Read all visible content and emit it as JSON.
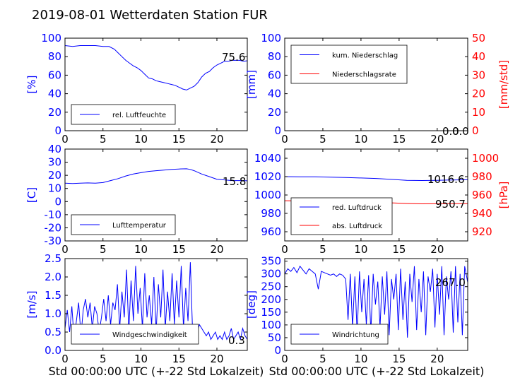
{
  "title": "2019-08-01 Wetterdaten Station FUR",
  "xlabel": "Std 00:00:00 UTC (+-22 Std Lokalzeit)",
  "colors": {
    "blue": "#0000ff",
    "red": "#ff0000",
    "black": "#000000"
  },
  "chart_data": [
    {
      "type": "line",
      "id": "humidity",
      "ylabel": "[%]",
      "xlim": [
        0,
        24
      ],
      "ylim": [
        0,
        100
      ],
      "xticks": [
        0,
        5,
        10,
        15,
        20
      ],
      "yticks": [
        0,
        20,
        40,
        60,
        80,
        100
      ],
      "legend_loc": "lower-left",
      "annotation": "75.6",
      "series": [
        {
          "name": "rel. Luftfeuchte",
          "color": "#0000ff",
          "x": [
            0,
            1,
            2,
            3,
            4,
            5,
            5.8,
            6.5,
            7,
            7.5,
            8,
            8.5,
            9,
            9.5,
            10,
            10.5,
            11,
            11.5,
            12,
            12.5,
            13,
            13.5,
            14,
            14.5,
            15,
            15.5,
            16,
            16.5,
            17,
            17.5,
            18,
            18.5,
            19,
            19.5,
            20,
            20.5,
            21,
            21.5,
            22,
            22.5,
            23,
            23.5,
            24
          ],
          "y": [
            92,
            91,
            92,
            92,
            92,
            91,
            91,
            88,
            84,
            80,
            76,
            73,
            70,
            68,
            65,
            61,
            57,
            56,
            54,
            53,
            52,
            51,
            50,
            49,
            47,
            45,
            44,
            46,
            48,
            52,
            58,
            62,
            64,
            68,
            71,
            73,
            75,
            75,
            76,
            76,
            76,
            75,
            75.6
          ]
        }
      ]
    },
    {
      "type": "line",
      "id": "precipitation",
      "ylabel": "[mm]",
      "ylabel_right": "[mm/std]",
      "xlim": [
        0,
        24
      ],
      "ylim": [
        0,
        100
      ],
      "ylim_right": [
        0,
        50
      ],
      "xticks": [
        0,
        5,
        10,
        15,
        20
      ],
      "yticks": [
        0,
        20,
        40,
        60,
        80,
        100
      ],
      "yticks_right": [
        0,
        10,
        20,
        30,
        40,
        50
      ],
      "legend_loc": "upper-left",
      "annotation": "0.0",
      "annotation_right": "0.0",
      "series": [
        {
          "name": "kum. Niederschlag",
          "color": "#0000ff",
          "x": [
            0,
            24
          ],
          "y": [
            0,
            0
          ]
        },
        {
          "name": "Niederschlagsrate",
          "color": "#ff0000",
          "axis": "right",
          "x": [
            0,
            24
          ],
          "y": [
            0,
            0
          ]
        }
      ]
    },
    {
      "type": "line",
      "id": "temperature",
      "ylabel": "[C]",
      "xlim": [
        0,
        24
      ],
      "ylim": [
        -30,
        40
      ],
      "xticks": [
        0,
        5,
        10,
        15,
        20
      ],
      "yticks": [
        -30,
        -20,
        -10,
        0,
        10,
        20,
        30,
        40
      ],
      "legend_loc": "lower-left",
      "annotation": "15.8",
      "series": [
        {
          "name": "Lufttemperatur",
          "color": "#0000ff",
          "x": [
            0,
            1,
            2,
            3,
            4,
            5,
            6,
            7,
            8,
            9,
            10,
            11,
            12,
            13,
            14,
            15,
            16,
            16.5,
            17,
            18,
            19,
            20,
            21,
            22,
            23,
            24
          ],
          "y": [
            14,
            13.8,
            14,
            14.2,
            14,
            14.5,
            16,
            17.5,
            19.5,
            21,
            22,
            23,
            23.5,
            24,
            24.5,
            24.8,
            25,
            24.5,
            23.5,
            21,
            19,
            17,
            16.5,
            16,
            16,
            15.8
          ]
        }
      ]
    },
    {
      "type": "line",
      "id": "pressure",
      "ylabel_right": "[hPa]",
      "xlim": [
        0,
        24
      ],
      "ylim": [
        950,
        1050
      ],
      "ylim_right": [
        910,
        1010
      ],
      "xticks": [
        0,
        5,
        10,
        15,
        20
      ],
      "yticks": [
        960,
        980,
        1000,
        1020,
        1040
      ],
      "yticks_right": [
        920,
        940,
        960,
        980,
        1000
      ],
      "legend_loc": "lower-left",
      "annotation": "1016.6",
      "annotation_right": "950.7",
      "series": [
        {
          "name": "red. Luftdruck",
          "color": "#0000ff",
          "x": [
            0,
            2,
            4,
            6,
            8,
            10,
            12,
            14,
            16,
            18,
            20,
            22,
            24
          ],
          "y": [
            1020,
            1019.8,
            1019.8,
            1019.5,
            1019,
            1018.5,
            1018,
            1017,
            1016,
            1015.8,
            1016,
            1016.4,
            1016.6
          ]
        },
        {
          "name": "abs. Luftdruck",
          "color": "#ff0000",
          "axis": "right",
          "x": [
            0,
            2,
            4,
            6,
            8,
            10,
            12,
            14,
            16,
            18,
            20,
            22,
            24
          ],
          "y": [
            953.8,
            953.7,
            953.6,
            953.4,
            953,
            952.6,
            952.2,
            951.5,
            950.8,
            950.4,
            950.5,
            950.6,
            950.7
          ]
        }
      ]
    },
    {
      "type": "line",
      "id": "windspeed",
      "ylabel": "[m/s]",
      "xlim": [
        0,
        24
      ],
      "ylim": [
        0,
        2.5
      ],
      "xticks": [
        0,
        5,
        10,
        15,
        20
      ],
      "yticks": [
        0.0,
        0.5,
        1.0,
        1.5,
        2.0,
        2.5
      ],
      "legend_loc": "lower-left",
      "annotation": "0.3",
      "series": [
        {
          "name": "Windgeschwindigkeit",
          "color": "#0000ff",
          "x": [
            0,
            0.3,
            0.6,
            0.9,
            1.2,
            1.5,
            1.8,
            2.1,
            2.4,
            2.7,
            3.0,
            3.3,
            3.6,
            3.9,
            4.2,
            4.5,
            4.8,
            5.1,
            5.4,
            5.7,
            6.0,
            6.3,
            6.6,
            6.9,
            7.2,
            7.5,
            7.8,
            8.1,
            8.4,
            8.7,
            9.0,
            9.3,
            9.6,
            9.9,
            10.2,
            10.5,
            10.8,
            11.1,
            11.4,
            11.7,
            12.0,
            12.3,
            12.6,
            12.9,
            13.2,
            13.5,
            13.8,
            14.1,
            14.4,
            14.7,
            15.0,
            15.3,
            15.6,
            15.9,
            16.2,
            16.5,
            16.8,
            17.1,
            17.4,
            17.7,
            18.0,
            18.3,
            18.6,
            18.9,
            19.2,
            19.5,
            19.8,
            20.1,
            20.4,
            20.7,
            21.0,
            21.3,
            21.6,
            21.9,
            22.2,
            22.5,
            22.8,
            23.1,
            23.4,
            23.7,
            24.0
          ],
          "y": [
            0.6,
            1.1,
            0.5,
            1.2,
            0.3,
            0.8,
            1.3,
            0.4,
            1.1,
            1.4,
            0.9,
            1.3,
            0.6,
            1.2,
            1.0,
            0.5,
            0.9,
            1.4,
            0.8,
            1.5,
            0.7,
            1.3,
            1.1,
            1.8,
            0.6,
            1.6,
            0.9,
            2.2,
            0.5,
            1.9,
            0.8,
            2.3,
            1.0,
            1.7,
            0.6,
            2.1,
            0.9,
            1.5,
            0.7,
            2.0,
            0.5,
            1.8,
            0.9,
            2.2,
            0.6,
            1.6,
            0.8,
            2.1,
            0.7,
            1.9,
            0.9,
            2.3,
            0.6,
            1.7,
            0.8,
            2.4,
            0.5,
            0.6,
            0.5,
            0.7,
            0.6,
            0.5,
            0.4,
            0.5,
            0.3,
            0.4,
            0.5,
            0.3,
            0.4,
            0.3,
            0.5,
            0.3,
            0.4,
            0.6,
            0.3,
            0.4,
            0.5,
            0.3,
            0.6,
            0.4,
            0.3
          ]
        }
      ]
    },
    {
      "type": "line",
      "id": "winddirection",
      "ylabel": "[deg]",
      "xlim": [
        0,
        24
      ],
      "ylim": [
        0,
        360
      ],
      "xticks": [
        0,
        5,
        10,
        15,
        20
      ],
      "yticks": [
        0,
        50,
        100,
        150,
        200,
        250,
        300,
        350
      ],
      "legend_loc": "lower-left",
      "annotation": "267.0",
      "series": [
        {
          "name": "Windrichtung",
          "color": "#0000ff",
          "x": [
            0,
            0.4,
            0.8,
            1.2,
            1.6,
            2.0,
            2.4,
            2.8,
            3.2,
            3.6,
            4.0,
            4.4,
            4.8,
            5.2,
            5.6,
            6.0,
            6.4,
            6.8,
            7.2,
            7.6,
            8.0,
            8.3,
            8.6,
            8.9,
            9.2,
            9.5,
            9.8,
            10.1,
            10.4,
            10.7,
            11.0,
            11.3,
            11.6,
            11.9,
            12.2,
            12.5,
            12.8,
            13.1,
            13.4,
            13.7,
            14.0,
            14.3,
            14.6,
            14.9,
            15.2,
            15.5,
            15.8,
            16.1,
            16.4,
            16.7,
            17.0,
            17.3,
            17.6,
            17.9,
            18.2,
            18.5,
            18.8,
            19.1,
            19.4,
            19.7,
            20.0,
            20.3,
            20.6,
            20.9,
            21.2,
            21.5,
            21.8,
            22.1,
            22.4,
            22.7,
            23.0,
            23.3,
            23.6,
            24.0
          ],
          "y": [
            300,
            320,
            310,
            325,
            305,
            330,
            315,
            300,
            320,
            310,
            300,
            240,
            310,
            305,
            300,
            295,
            300,
            290,
            300,
            295,
            280,
            120,
            300,
            90,
            290,
            60,
            310,
            150,
            280,
            100,
            295,
            70,
            300,
            180,
            270,
            90,
            290,
            140,
            310,
            60,
            280,
            200,
            300,
            80,
            320,
            120,
            270,
            50,
            300,
            190,
            330,
            80,
            280,
            150,
            310,
            60,
            290,
            230,
            320,
            90,
            300,
            140,
            330,
            60,
            290,
            200,
            310,
            70,
            330,
            110,
            300,
            60,
            330,
            267
          ]
        }
      ]
    }
  ]
}
